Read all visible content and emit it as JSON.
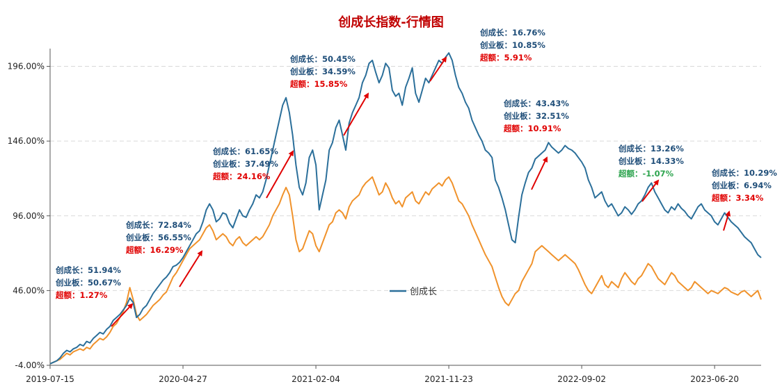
{
  "chart_data": {
    "type": "line",
    "title": "创成长指数-行情图",
    "title_color": "#c00000",
    "ylim": [
      -4,
      206
    ],
    "y_ticks": [
      "-4.00%",
      "46.00%",
      "96.00%",
      "146.00%",
      "196.00%"
    ],
    "y_tick_values": [
      -4,
      46,
      96,
      146,
      196
    ],
    "x_ticks": [
      "2019-07-15",
      "2020-04-27",
      "2021-02-04",
      "2021-11-23",
      "2022-09-02",
      "2023-06-20"
    ],
    "x_tick_index": [
      0,
      40,
      80,
      120,
      160,
      200
    ],
    "grid": "horizontal dashed",
    "legend": {
      "label": "创成长",
      "position": "center"
    },
    "colors": {
      "series_blue": "#2b6f9a",
      "series_orange": "#f0922b",
      "arrow": "#e00000",
      "text_blue": "#1f4e79",
      "text_red": "#e00000",
      "text_green": "#2ea44f"
    },
    "series": [
      {
        "name": "创成长",
        "color": "#2b6f9a",
        "values": [
          -3,
          -2,
          -1,
          1,
          4,
          6,
          5,
          7,
          8,
          10,
          9,
          12,
          11,
          14,
          16,
          18,
          17,
          20,
          22,
          26,
          28,
          30,
          33,
          36,
          41,
          38,
          28,
          30,
          34,
          36,
          40,
          44,
          47,
          50,
          53,
          55,
          58,
          62,
          63,
          65,
          68,
          72,
          76,
          80,
          84,
          86,
          92,
          100,
          104,
          100,
          92,
          94,
          98,
          97,
          91,
          88,
          94,
          100,
          96,
          95,
          100,
          104,
          110,
          108,
          112,
          120,
          130,
          140,
          150,
          160,
          170,
          175,
          165,
          150,
          130,
          115,
          110,
          118,
          135,
          140,
          130,
          100,
          110,
          120,
          140,
          145,
          155,
          160,
          150,
          140,
          158,
          165,
          170,
          175,
          185,
          190,
          198,
          200,
          192,
          185,
          190,
          198,
          195,
          180,
          176,
          178,
          170,
          182,
          188,
          195,
          178,
          172,
          180,
          188,
          185,
          190,
          195,
          200,
          198,
          202,
          205,
          200,
          190,
          182,
          178,
          172,
          168,
          160,
          155,
          150,
          146,
          140,
          138,
          135,
          120,
          115,
          108,
          100,
          90,
          80,
          78,
          95,
          110,
          118,
          125,
          128,
          134,
          136,
          138,
          140,
          145,
          142,
          140,
          138,
          140,
          143,
          141,
          140,
          138,
          135,
          132,
          128,
          120,
          115,
          108,
          110,
          112,
          106,
          102,
          104,
          100,
          96,
          98,
          102,
          100,
          97,
          100,
          104,
          106,
          110,
          115,
          118,
          112,
          108,
          104,
          100,
          98,
          102,
          100,
          104,
          101,
          99,
          96,
          94,
          98,
          102,
          104,
          100,
          98,
          96,
          92,
          90,
          94,
          98,
          95,
          92,
          90,
          88,
          85,
          82,
          80,
          78,
          74,
          70,
          68
        ]
      },
      {
        "name": "创业板",
        "color": "#f0922b",
        "values": [
          -3,
          -2,
          -1,
          0,
          2,
          4,
          3,
          5,
          6,
          7,
          6,
          8,
          7,
          10,
          12,
          14,
          13,
          15,
          18,
          22,
          24,
          28,
          32,
          38,
          48,
          40,
          30,
          26,
          28,
          30,
          33,
          36,
          38,
          40,
          43,
          45,
          50,
          55,
          58,
          62,
          66,
          70,
          74,
          76,
          78,
          80,
          84,
          88,
          90,
          86,
          80,
          82,
          84,
          82,
          78,
          76,
          80,
          82,
          78,
          76,
          78,
          80,
          82,
          80,
          82,
          86,
          90,
          96,
          100,
          104,
          110,
          115,
          110,
          96,
          80,
          72,
          74,
          80,
          86,
          84,
          76,
          72,
          78,
          84,
          90,
          92,
          98,
          100,
          98,
          94,
          102,
          106,
          108,
          110,
          115,
          118,
          120,
          122,
          116,
          110,
          112,
          118,
          114,
          108,
          104,
          106,
          102,
          108,
          110,
          112,
          106,
          104,
          108,
          112,
          110,
          114,
          116,
          118,
          116,
          120,
          122,
          118,
          112,
          106,
          104,
          100,
          96,
          90,
          85,
          80,
          75,
          70,
          66,
          62,
          55,
          48,
          42,
          38,
          36,
          40,
          44,
          46,
          52,
          56,
          60,
          64,
          72,
          74,
          76,
          74,
          72,
          70,
          68,
          66,
          68,
          70,
          68,
          66,
          64,
          60,
          55,
          50,
          46,
          44,
          48,
          52,
          56,
          50,
          48,
          52,
          50,
          48,
          54,
          58,
          55,
          52,
          50,
          54,
          56,
          60,
          64,
          62,
          58,
          54,
          52,
          50,
          54,
          58,
          56,
          52,
          50,
          48,
          46,
          48,
          52,
          50,
          48,
          46,
          44,
          46,
          45,
          44,
          46,
          48,
          47,
          45,
          44,
          43,
          45,
          46,
          44,
          42,
          44,
          46,
          40
        ]
      }
    ],
    "annotations": [
      {
        "cy": "创成长：",
        "cyv": "51.94%",
        "yb": "创业板：",
        "ybv": "50.67%",
        "ce": "超额：",
        "cev": "1.27%",
        "excess_sign": "pos"
      },
      {
        "cy": "创成长：",
        "cyv": "72.84%",
        "yb": "创业板：",
        "ybv": "56.55%",
        "ce": "超额：",
        "cev": "16.29%",
        "excess_sign": "pos"
      },
      {
        "cy": "创成长：",
        "cyv": "61.65%",
        "yb": "创业板：",
        "ybv": "37.49%",
        "ce": "超额：",
        "cev": "24.16%",
        "excess_sign": "pos"
      },
      {
        "cy": "创成长：",
        "cyv": "50.45%",
        "yb": "创业板：",
        "ybv": "34.59%",
        "ce": "超额：",
        "cev": "15.85%",
        "excess_sign": "pos"
      },
      {
        "cy": "创成长：",
        "cyv": "16.76%",
        "yb": "创业板：",
        "ybv": "10.85%",
        "ce": "超额：",
        "cev": "5.91%",
        "excess_sign": "pos"
      },
      {
        "cy": "创成长：",
        "cyv": "43.43%",
        "yb": "创业板：",
        "ybv": "32.51%",
        "ce": "超额：",
        "cev": "10.91%",
        "excess_sign": "pos"
      },
      {
        "cy": "创成长：",
        "cyv": "13.26%",
        "yb": "创业板：",
        "ybv": "14.33%",
        "ce": "超额：",
        "cev": "-1.07%",
        "excess_sign": "neg"
      },
      {
        "cy": "创成长：",
        "cyv": "10.29%",
        "yb": "创业板：",
        "ybv": "6.94%",
        "ce": "超额：",
        "cev": "3.34%",
        "excess_sign": "pos"
      }
    ]
  }
}
